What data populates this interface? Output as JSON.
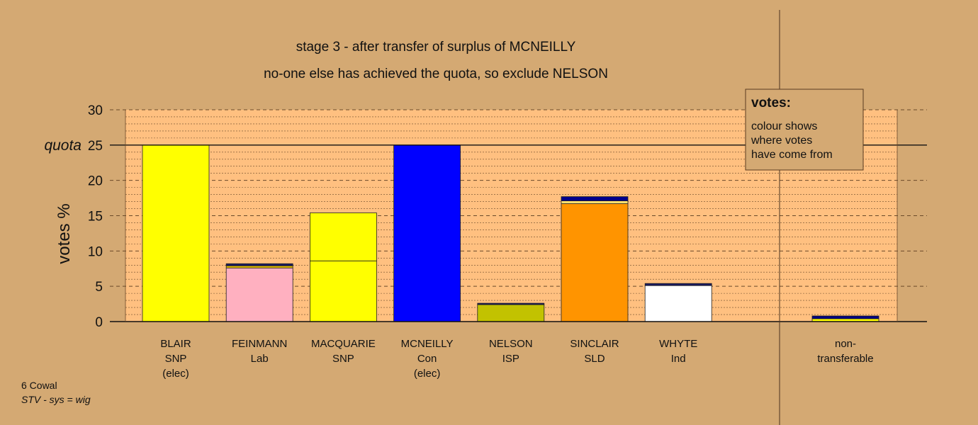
{
  "chart_data": {
    "type": "bar",
    "stacked": true,
    "title": "stage 3 - after transfer of surplus of MCNEILLY",
    "subtitle": "no-one else has achieved the quota, so exclude NELSON",
    "ylabel": "votes %",
    "ylim": [
      0,
      30
    ],
    "yticks": [
      0,
      5,
      10,
      15,
      20,
      25,
      30
    ],
    "quota": {
      "value": 25,
      "label": "quota"
    },
    "grid": true,
    "candidates": [
      {
        "lines": [
          "BLAIR",
          "SNP",
          "(elec)"
        ],
        "segments": [
          {
            "value": 25.0,
            "color": "#ffff00"
          }
        ]
      },
      {
        "lines": [
          "FEINMANN",
          "Lab"
        ],
        "segments": [
          {
            "value": 7.6,
            "color": "#ffb0c0"
          },
          {
            "value": 0.3,
            "color": "#e6c000"
          },
          {
            "value": 0.3,
            "color": "#1a1a60"
          }
        ]
      },
      {
        "lines": [
          "MACQUARIE",
          "SNP"
        ],
        "segments": [
          {
            "value": 8.6,
            "color": "#ffff00"
          },
          {
            "value": 6.8,
            "color": "#ffff00"
          }
        ]
      },
      {
        "lines": [
          "MCNEILLY",
          "Con",
          "(elec)"
        ],
        "segments": [
          {
            "value": 25.0,
            "color": "#0000ff"
          }
        ]
      },
      {
        "lines": [
          "NELSON",
          "ISP"
        ],
        "segments": [
          {
            "value": 2.4,
            "color": "#c2c200"
          },
          {
            "value": 0.2,
            "color": "#1a1a60"
          }
        ]
      },
      {
        "lines": [
          "SINCLAIR",
          "SLD"
        ],
        "segments": [
          {
            "value": 16.7,
            "color": "#ff9400"
          },
          {
            "value": 0.4,
            "color": "#ffe070"
          },
          {
            "value": 0.6,
            "color": "#00008b"
          }
        ]
      },
      {
        "lines": [
          "WHYTE",
          "Ind"
        ],
        "segments": [
          {
            "value": 5.1,
            "color": "#ffffff"
          },
          {
            "value": 0.3,
            "color": "#1a1a60"
          }
        ]
      }
    ],
    "nontransferable": {
      "lines": [
        "non-",
        "transferable"
      ],
      "segments": [
        {
          "value": 0.4,
          "color": "#ffff00"
        },
        {
          "value": 0.4,
          "color": "#000080"
        }
      ]
    },
    "legend": {
      "title": "votes:",
      "lines": [
        "colour shows",
        "where votes",
        "have come from"
      ],
      "position": "top-right"
    }
  },
  "footer": {
    "line1": "6 Cowal",
    "line2": "STV - sys = wig"
  },
  "colors": {
    "background": "#d4a973",
    "plot_area": "#ffc080"
  }
}
